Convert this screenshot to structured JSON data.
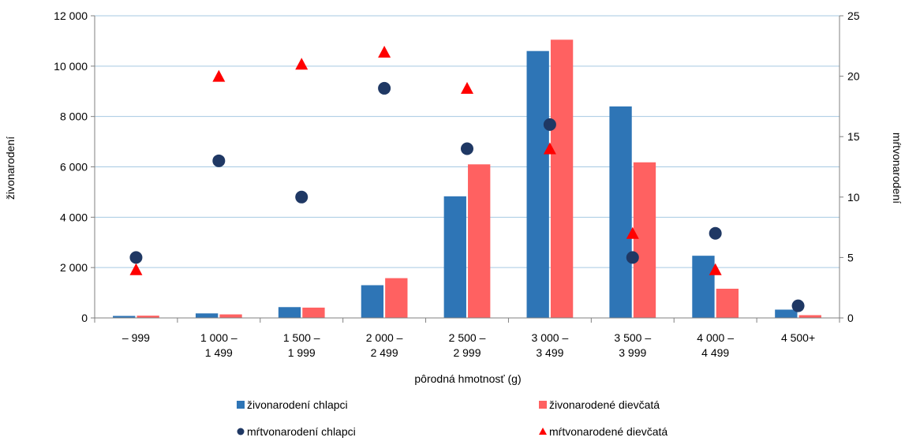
{
  "chart_data": {
    "type": "bar",
    "categories": [
      [
        "– 999"
      ],
      [
        "1 000 –",
        "1 499"
      ],
      [
        "1 500 –",
        "1 999"
      ],
      [
        "2 000 –",
        "2 499"
      ],
      [
        "2 500 –",
        "2 999"
      ],
      [
        "3 000 –",
        "3 499"
      ],
      [
        "3 500 –",
        "3 999"
      ],
      [
        "4 000 –",
        "4 499"
      ],
      [
        "4 500+"
      ]
    ],
    "xlabel": "pôrodná hmotnosť (g)",
    "ylabel": "živonarodení",
    "y2label": "mŕtvonarodení",
    "ylim": [
      0,
      12000
    ],
    "y2lim": [
      0,
      25
    ],
    "yticks": [
      0,
      2000,
      4000,
      6000,
      8000,
      10000,
      12000
    ],
    "yticklabels": [
      "0",
      "2 000",
      "4 000",
      "6 000",
      "8 000",
      "10 000",
      "12 000"
    ],
    "y2ticks": [
      0,
      5,
      10,
      15,
      20,
      25
    ],
    "y2ticklabels": [
      "0",
      "5",
      "10",
      "15",
      "20",
      "25"
    ],
    "grid": true,
    "legend_position": "bottom",
    "series": [
      {
        "name": "živonarodení chlapci",
        "axis": "left",
        "kind": "bar",
        "color": "#2e75b6",
        "values": [
          80,
          180,
          430,
          1300,
          4830,
          10600,
          8400,
          2470,
          330
        ]
      },
      {
        "name": "živonarodené dievčatá",
        "axis": "left",
        "kind": "bar",
        "color": "#ff6161",
        "values": [
          90,
          140,
          410,
          1580,
          6100,
          11050,
          6180,
          1160,
          110
        ]
      },
      {
        "name": "mŕtvonarodení chlapci",
        "axis": "right",
        "kind": "marker",
        "marker": "circle",
        "color": "#1f3864",
        "values": [
          5,
          13,
          10,
          19,
          14,
          16,
          5,
          7,
          1
        ]
      },
      {
        "name": "mŕtvonarodené dievčatá",
        "axis": "right",
        "kind": "marker",
        "marker": "triangle",
        "color": "#ff0000",
        "values": [
          4,
          20,
          21,
          22,
          19,
          14,
          7,
          4,
          null
        ]
      }
    ]
  }
}
